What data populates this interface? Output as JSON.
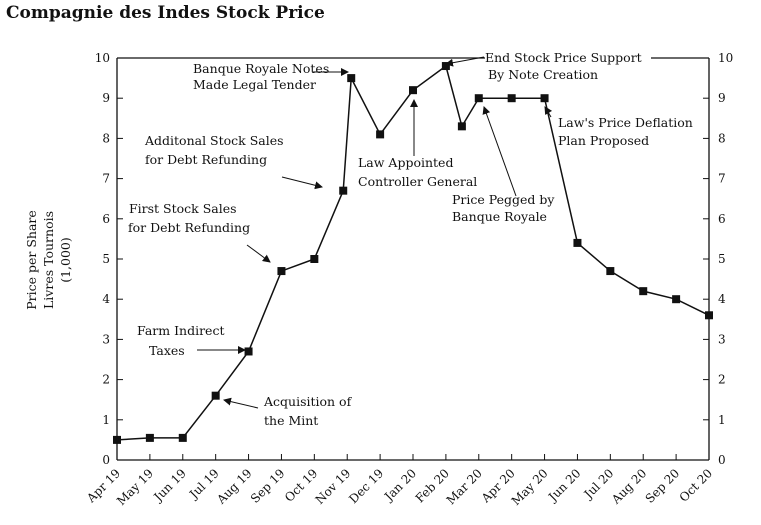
{
  "chart_data": {
    "type": "line",
    "title": "Compagnie des Indes Stock Price",
    "ylabel_lines": [
      "Price per Share",
      "Livres Tournois",
      "(1,000)"
    ],
    "xlabel": "",
    "ylim": [
      0,
      10
    ],
    "yticks": [
      "0",
      "1",
      "2",
      "3",
      "4",
      "5",
      "6",
      "7",
      "8",
      "9",
      "10"
    ],
    "grid": false,
    "right_axis": true,
    "x_ticks": [
      "Apr 19",
      "May 19",
      "Jun 19",
      "Jul 19",
      "Aug 19",
      "Sep 19",
      "Oct 19",
      "Nov 19",
      "Dec 19",
      "Jan 20",
      "Feb 20",
      "Mar 20",
      "Apr 20",
      "May 20",
      "Jun 20",
      "Jul 20",
      "Aug 20",
      "Sep 20",
      "Oct 20"
    ],
    "series": [
      {
        "marker": "square",
        "color": "#111111",
        "points": [
          {
            "x": "Apr 19",
            "y": 0.5
          },
          {
            "x": "May 19",
            "y": 0.55
          },
          {
            "x": "Jun 19",
            "y": 0.55
          },
          {
            "x": "Jul 19",
            "y": 1.6
          },
          {
            "x": "Aug 19",
            "y": 2.7
          },
          {
            "x": "Sep 19",
            "y": 4.7
          },
          {
            "x": "Oct 19",
            "y": 5.0
          },
          {
            "x": "Nov 19",
            "y": 6.7
          },
          {
            "x": "Nov 19",
            "y": 9.5
          },
          {
            "x": "Dec 19",
            "y": 8.1
          },
          {
            "x": "Jan 20",
            "y": 9.2
          },
          {
            "x": "Feb 20",
            "y": 9.8
          },
          {
            "x": "Feb 20",
            "y": 8.3
          },
          {
            "x": "Mar 20",
            "y": 9.0
          },
          {
            "x": "Apr 20",
            "y": 9.0
          },
          {
            "x": "May 20",
            "y": 9.0
          },
          {
            "x": "Jun 20",
            "y": 5.4
          },
          {
            "x": "Jul 20",
            "y": 4.7
          },
          {
            "x": "Aug 20",
            "y": 4.2
          },
          {
            "x": "Sep 20",
            "y": 4.0
          },
          {
            "x": "Oct 20",
            "y": 3.6
          }
        ]
      }
    ],
    "annotations": [
      {
        "lines": [
          "Banque Royale Notes",
          "Made Legal Tender"
        ]
      },
      {
        "lines": [
          "End Stock Price Support",
          "By Note Creation"
        ]
      },
      {
        "lines": [
          "Additonal Stock Sales",
          "for Debt Refunding"
        ]
      },
      {
        "lines": [
          "Law Appointed",
          "Controller General"
        ]
      },
      {
        "lines": [
          "Law's Price Deflation",
          "Plan Proposed"
        ]
      },
      {
        "lines": [
          "Price Pegged by",
          "Banque Royale"
        ]
      },
      {
        "lines": [
          "First Stock Sales",
          "for Debt Refunding"
        ]
      },
      {
        "lines": [
          "Farm Indirect",
          "Taxes"
        ]
      },
      {
        "lines": [
          "Acquisition of",
          "the Mint"
        ]
      }
    ]
  }
}
